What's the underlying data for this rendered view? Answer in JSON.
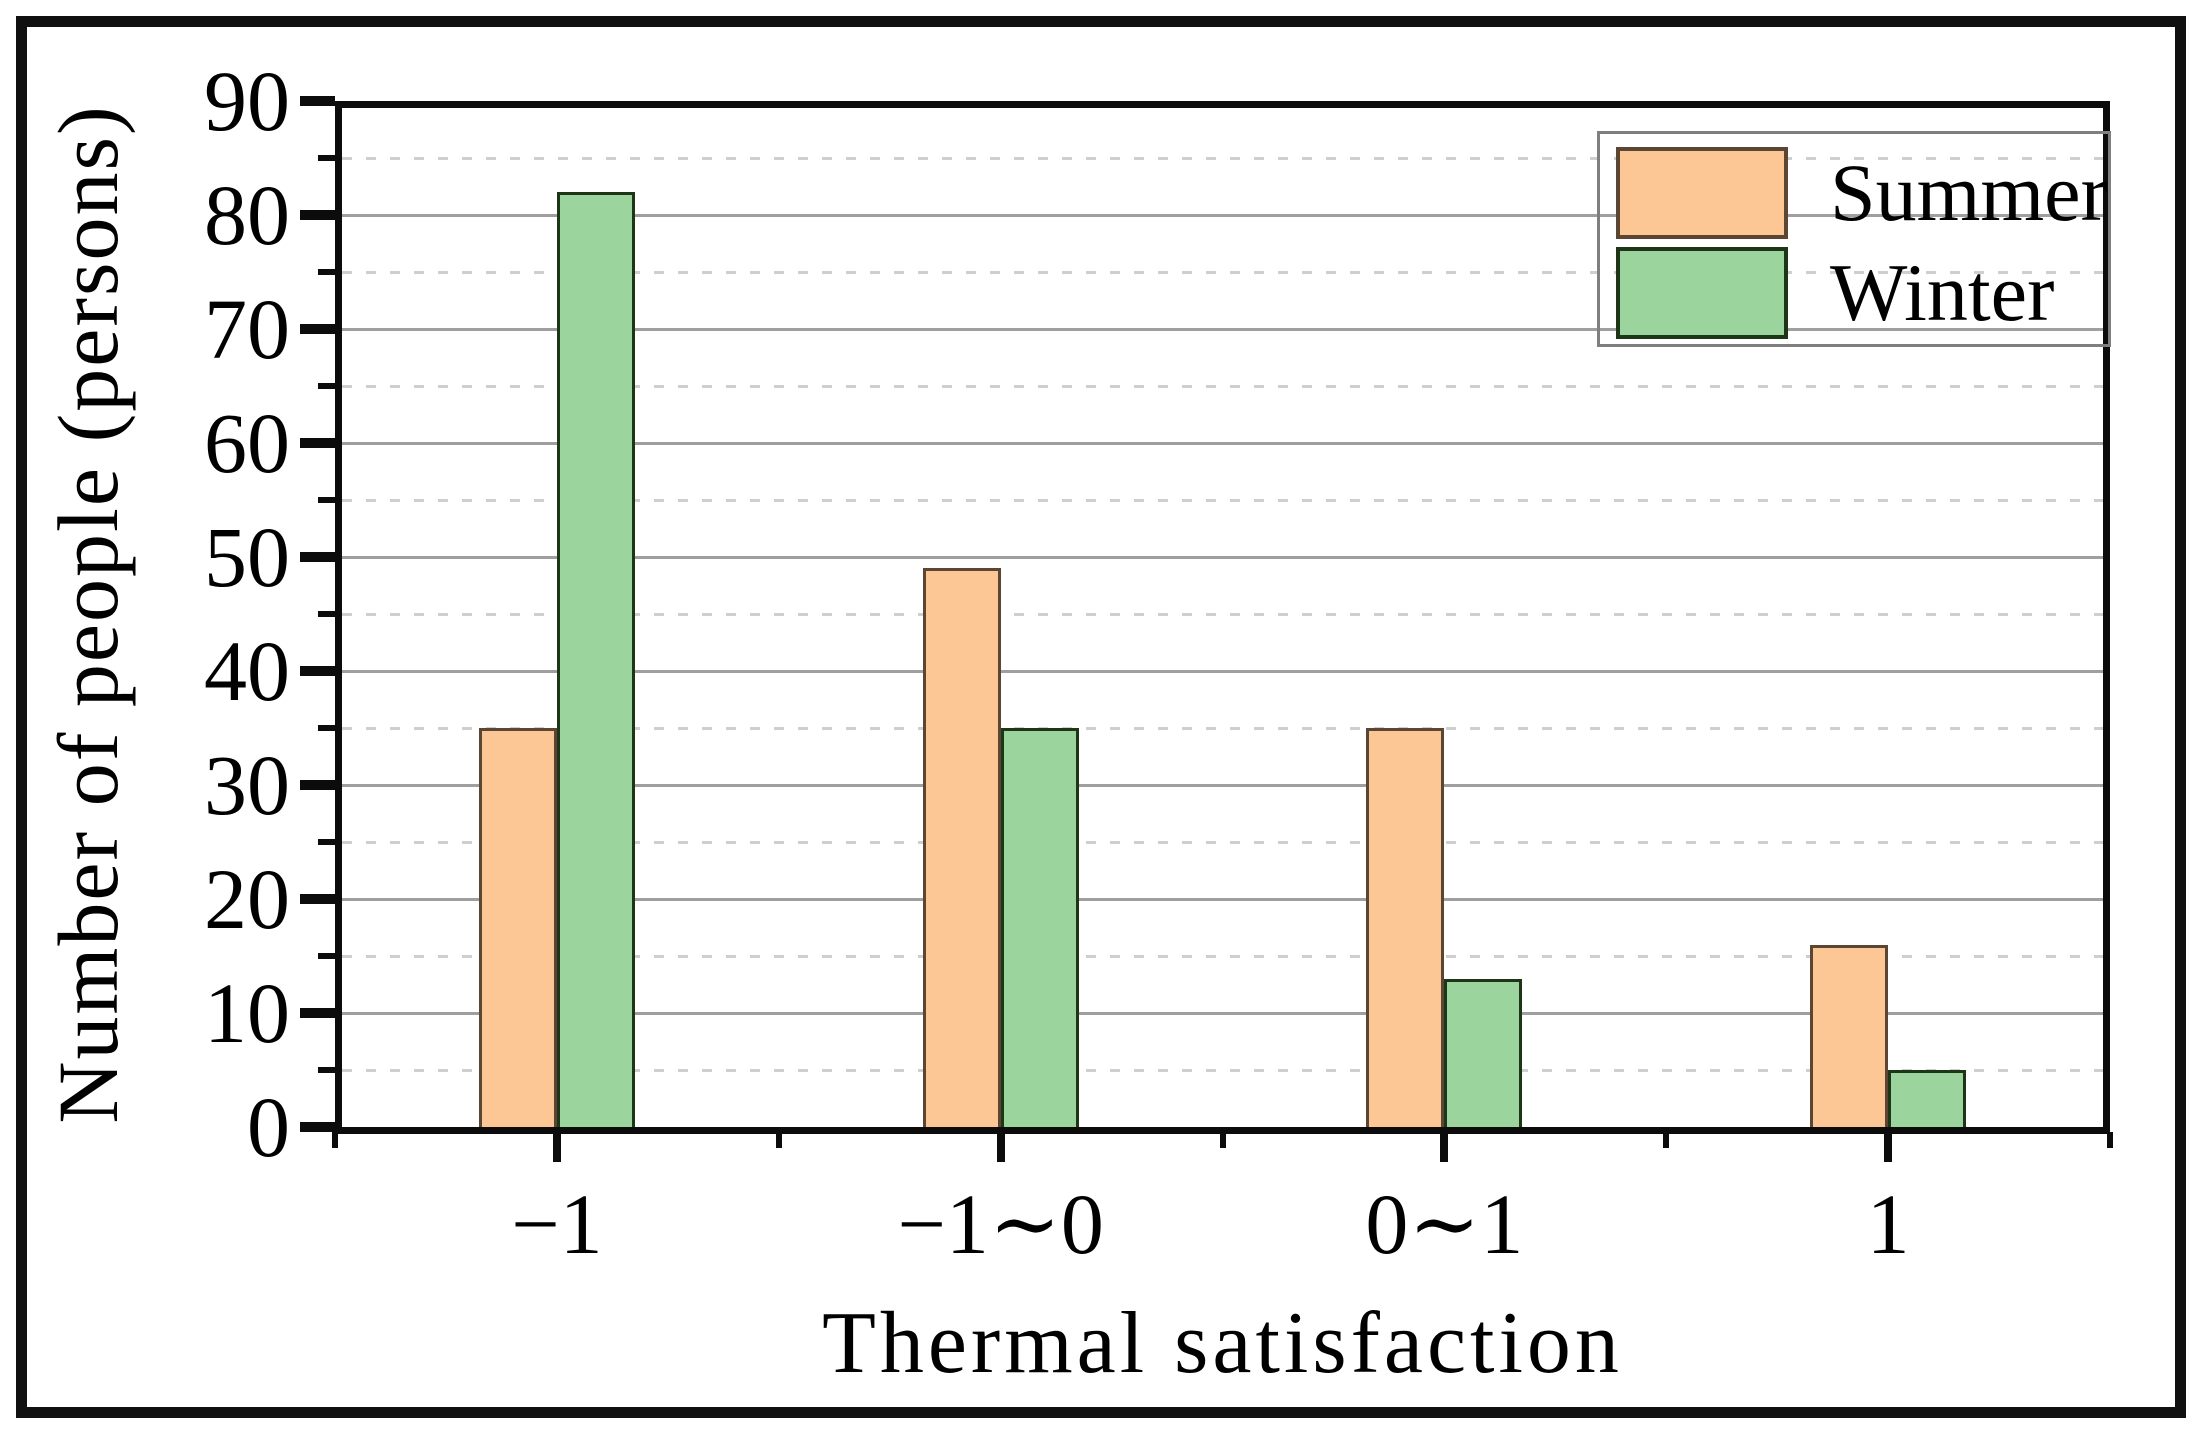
{
  "chart_data": {
    "type": "bar",
    "title": "",
    "categories": [
      "−1",
      "−1∼0",
      "0∼1",
      "1"
    ],
    "series": [
      {
        "name": "Summer",
        "values": [
          35,
          49,
          35,
          16
        ],
        "fill": "#fcc795",
        "border": "#5a4632"
      },
      {
        "name": "Winter",
        "values": [
          82,
          35,
          13,
          5
        ],
        "fill": "#9bd49c",
        "border": "#1e3517"
      }
    ],
    "xlabel": "Thermal satisfaction",
    "ylabel": "Number of people (persons)",
    "ylim": [
      0,
      90
    ],
    "yticks": [
      0,
      10,
      20,
      30,
      40,
      50,
      60,
      70,
      80,
      90
    ],
    "ytick_minor_step": 5,
    "grid": "horizontal; solid lines at multiples of 10, dashed lines at multiples of 5",
    "legend_position": "top-right",
    "legend_entries": [
      "Summer",
      "Winter"
    ],
    "colors": {
      "summer_fill": "#fcc795",
      "summer_border": "#5a4632",
      "winter_fill": "#9bd49c",
      "winter_border": "#1e3517",
      "gridline_solid": "#9f9f9f",
      "gridline_dashed": "#cfcfcf",
      "frame": "#0c0c0c"
    }
  }
}
